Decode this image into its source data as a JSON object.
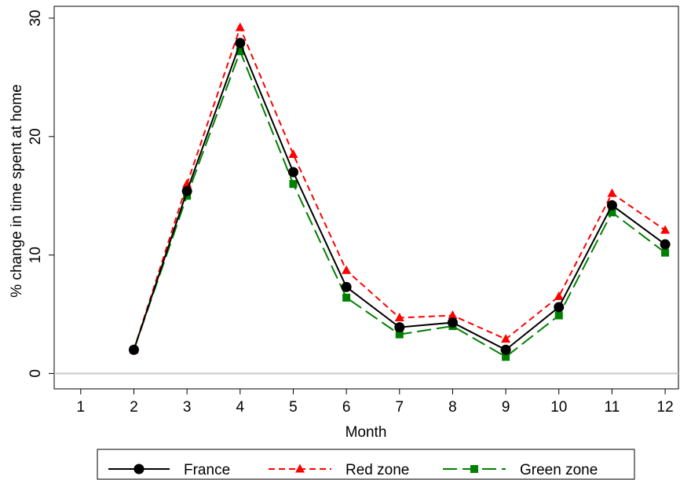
{
  "chart_data": {
    "type": "line",
    "title": "",
    "xlabel": "Month",
    "ylabel": "% change in time spent at home",
    "xlim": [
      1,
      12
    ],
    "ylim": [
      0,
      30
    ],
    "xticks": [
      1,
      2,
      3,
      4,
      5,
      6,
      7,
      8,
      9,
      10,
      11,
      12
    ],
    "yticks": [
      0,
      10,
      20,
      30
    ],
    "reference_line_y": 0,
    "grid": false,
    "legend_position": "bottom",
    "series": [
      {
        "name": "France",
        "color": "#000000",
        "marker": "circle",
        "line_style": "solid",
        "x": [
          2,
          3,
          4,
          5,
          6,
          7,
          8,
          9,
          10,
          11,
          12
        ],
        "y": [
          2.0,
          15.4,
          27.9,
          17.0,
          7.3,
          3.9,
          4.3,
          2.0,
          5.6,
          14.2,
          10.9
        ]
      },
      {
        "name": "Red zone",
        "color": "#ff0000",
        "marker": "triangle",
        "line_style": "dashed",
        "x": [
          2,
          3,
          4,
          5,
          6,
          7,
          8,
          9,
          10,
          11,
          12
        ],
        "y": [
          2.0,
          16.0,
          29.2,
          18.5,
          8.7,
          4.7,
          4.9,
          2.9,
          6.5,
          15.2,
          12.1
        ]
      },
      {
        "name": "Green zone",
        "color": "#008000",
        "marker": "square",
        "line_style": "long-dashed",
        "x": [
          2,
          3,
          4,
          5,
          6,
          7,
          8,
          9,
          10,
          11,
          12
        ],
        "y": [
          2.0,
          15.0,
          27.2,
          16.0,
          6.4,
          3.3,
          4.0,
          1.4,
          4.9,
          13.6,
          10.2
        ]
      }
    ]
  }
}
